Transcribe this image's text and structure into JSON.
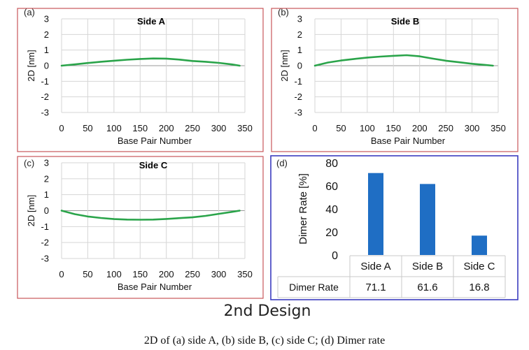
{
  "design_title": "2nd Design",
  "caption": "2D of (a) side A, (b) side B, (c) side C; (d) Dimer rate",
  "colors": {
    "series": "#2aa44a",
    "bar": "#1f6ec4",
    "frame_red": "#c9565a",
    "frame_blue": "#3b3cc0"
  },
  "chart_data": [
    {
      "type": "line",
      "panel_label": "(a)",
      "title": "Side A",
      "xlabel": "Base Pair Number",
      "ylabel": "2D [nm]",
      "xlim": [
        0,
        350
      ],
      "ylim": [
        -3,
        3
      ],
      "xticks": [
        "0",
        "50",
        "100",
        "150",
        "200",
        "250",
        "300",
        "350"
      ],
      "yticks": [
        "3",
        "2",
        "1",
        "0",
        "-1",
        "-2",
        "-3"
      ],
      "grid": true,
      "series": [
        {
          "x": [
            0,
            25,
            50,
            75,
            100,
            125,
            150,
            175,
            200,
            225,
            250,
            275,
            300,
            325,
            340
          ],
          "y": [
            0.0,
            0.08,
            0.17,
            0.25,
            0.32,
            0.38,
            0.43,
            0.46,
            0.45,
            0.39,
            0.3,
            0.25,
            0.18,
            0.08,
            0.0
          ]
        }
      ]
    },
    {
      "type": "line",
      "panel_label": "(b)",
      "title": "Side B",
      "xlabel": "Base Pair Number",
      "ylabel": "2D [nm]",
      "xlim": [
        0,
        350
      ],
      "ylim": [
        -3,
        3
      ],
      "xticks": [
        "0",
        "50",
        "100",
        "150",
        "200",
        "250",
        "300",
        "350"
      ],
      "yticks": [
        "3",
        "2",
        "1",
        "0",
        "-1",
        "-2",
        "-3"
      ],
      "grid": true,
      "series": [
        {
          "x": [
            0,
            25,
            50,
            75,
            100,
            125,
            150,
            175,
            200,
            225,
            250,
            275,
            300,
            325,
            340
          ],
          "y": [
            0.0,
            0.2,
            0.33,
            0.43,
            0.52,
            0.58,
            0.63,
            0.67,
            0.6,
            0.45,
            0.32,
            0.22,
            0.12,
            0.05,
            0.0
          ]
        }
      ]
    },
    {
      "type": "line",
      "panel_label": "(c)",
      "title": "Side C",
      "xlabel": "Base Pair Number",
      "ylabel": "2D [nm]",
      "xlim": [
        0,
        350
      ],
      "ylim": [
        -3,
        3
      ],
      "xticks": [
        "0",
        "50",
        "100",
        "150",
        "200",
        "250",
        "300",
        "350"
      ],
      "yticks": [
        "3",
        "2",
        "1",
        "0",
        "-1",
        "-2",
        "-3"
      ],
      "grid": true,
      "series": [
        {
          "x": [
            0,
            25,
            50,
            75,
            100,
            125,
            150,
            175,
            200,
            225,
            250,
            275,
            300,
            325,
            340
          ],
          "y": [
            0.0,
            -0.22,
            -0.37,
            -0.46,
            -0.53,
            -0.56,
            -0.57,
            -0.56,
            -0.52,
            -0.47,
            -0.42,
            -0.33,
            -0.2,
            -0.08,
            0.0
          ]
        }
      ]
    },
    {
      "type": "bar",
      "panel_label": "(d)",
      "ylabel": "Dimer Rate [%]",
      "ylim": [
        0,
        80
      ],
      "yticks": [
        "0",
        "20",
        "40",
        "60",
        "80"
      ],
      "categories": [
        "Side A",
        "Side B",
        "Side C"
      ],
      "values": [
        71.1,
        61.6,
        16.8
      ],
      "table": {
        "row_header": "Dimer Rate",
        "values": [
          "71.1",
          "61.6",
          "16.8"
        ]
      }
    }
  ]
}
